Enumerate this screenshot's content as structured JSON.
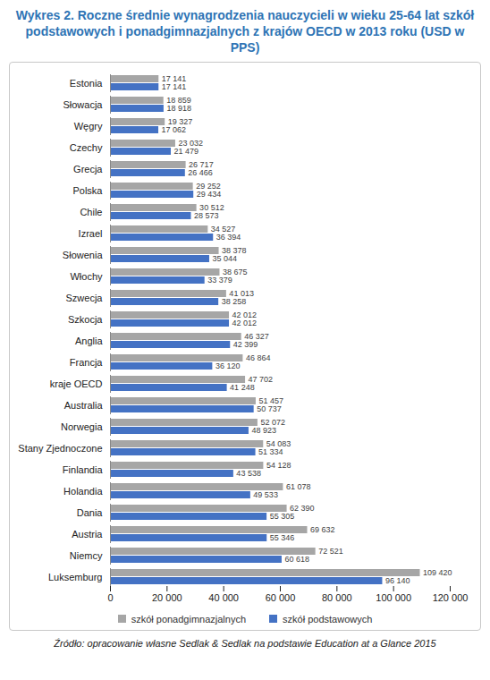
{
  "chart_data": {
    "type": "bar",
    "orientation": "horizontal",
    "title": "Wykres 2. Roczne średnie wynagrodzenia nauczycieli w wieku 25-64 lat szkół podstawowych i ponadgimnazjalnych z krajów OECD w 2013 roku (USD w PPS)",
    "source": "Źródło: opracowanie własne Sedlak & Sedlak na podstawie Education at a Glance 2015",
    "categories": [
      "Estonia",
      "Słowacja",
      "Węgry",
      "Czechy",
      "Grecja",
      "Polska",
      "Chile",
      "Izrael",
      "Słowenia",
      "Włochy",
      "Szwecja",
      "Szkocja",
      "Anglia",
      "Francja",
      "kraje OECD",
      "Australia",
      "Norwegia",
      "Stany Zjednoczone",
      "Finlandia",
      "Holandia",
      "Dania",
      "Austria",
      "Niemcy",
      "Luksemburg"
    ],
    "series": [
      {
        "name": "szkół ponadgimnazjalnych",
        "color": "#a6a6a6",
        "values": [
          17141,
          18859,
          19327,
          23032,
          26717,
          29252,
          30512,
          34527,
          38378,
          38675,
          41013,
          42012,
          46327,
          46864,
          47702,
          51457,
          52072,
          54083,
          54128,
          61078,
          62390,
          69632,
          72521,
          109420
        ],
        "value_labels": [
          "17 141",
          "18 859",
          "19 327",
          "23 032",
          "26 717",
          "29 252",
          "30 512",
          "34 527",
          "38 378",
          "38 675",
          "41 013",
          "42 012",
          "46 327",
          "46 864",
          "47 702",
          "51 457",
          "52 072",
          "54 083",
          "54 128",
          "61 078",
          "62 390",
          "69 632",
          "72 521",
          "109 420"
        ]
      },
      {
        "name": "szkół podstawowych",
        "color": "#4472c4",
        "values": [
          17141,
          18918,
          17062,
          21479,
          26466,
          29434,
          28573,
          36394,
          35044,
          33379,
          38258,
          42012,
          42399,
          36120,
          41248,
          50737,
          48923,
          51334,
          43538,
          49533,
          55305,
          55346,
          60618,
          96140
        ],
        "value_labels": [
          "17 141",
          "18 918",
          "17 062",
          "21 479",
          "26 466",
          "29 434",
          "28 573",
          "36 394",
          "35 044",
          "33 379",
          "38 258",
          "42 012",
          "42 399",
          "36 120",
          "41 248",
          "50 737",
          "48 923",
          "51 334",
          "43 538",
          "49 533",
          "55 305",
          "55 346",
          "60 618",
          "96 140"
        ]
      }
    ],
    "xlim": [
      0,
      120000
    ],
    "xticks": [
      0,
      {
        "value": 20000,
        "label": "20 000"
      },
      {
        "value": 40000,
        "label": "40 000"
      },
      {
        "value": 60000,
        "label": "60 000"
      },
      {
        "value": 80000,
        "label": "80 000"
      },
      {
        "value": 100000,
        "label": "100 000"
      },
      {
        "value": 120000,
        "label": "120 000"
      }
    ],
    "grid": false,
    "legend": "bottom",
    "data_labels": true
  }
}
